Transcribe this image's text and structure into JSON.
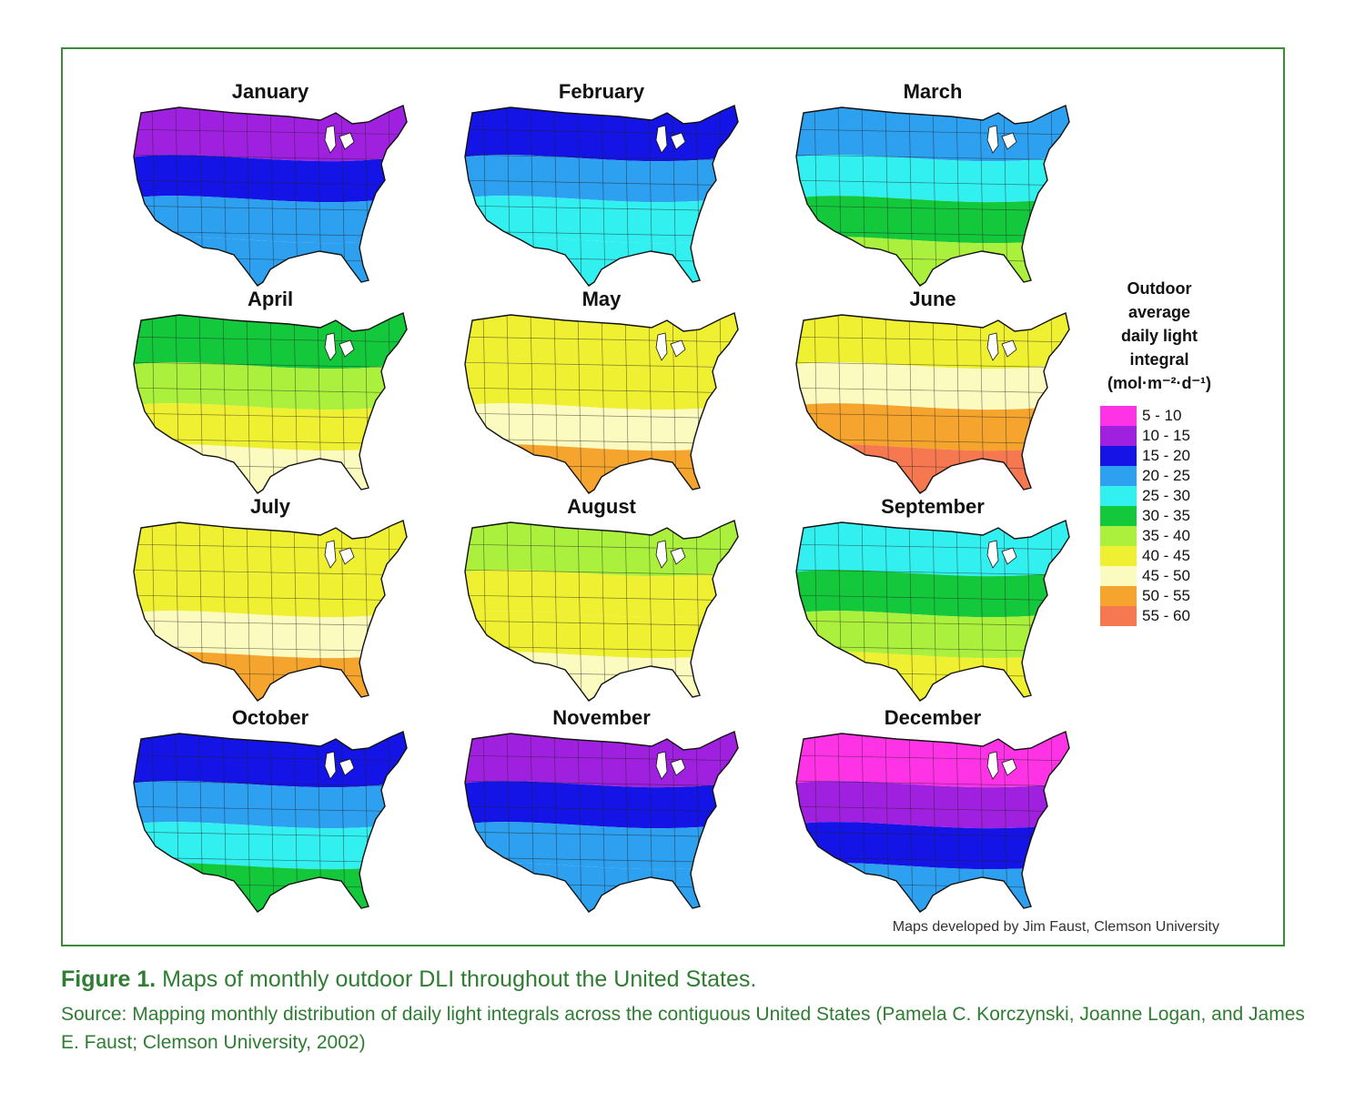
{
  "figure": {
    "credit": "Maps developed by Jim Faust, Clemson University",
    "caption_label": "Figure 1.",
    "caption_text": "Maps of monthly outdoor DLI throughout the United States.",
    "source": "Source: Mapping monthly distribution of daily light integrals across the contiguous United States (Pamela C. Korczynski, Joanne Logan, and James E. Faust; Clemson University, 2002)"
  },
  "legend": {
    "title_lines": [
      "Outdoor",
      "average",
      "daily light",
      "integral",
      "(mol·m⁻²·d⁻¹)"
    ],
    "classes": [
      {
        "label": "5 - 10",
        "color": "#ff33e6"
      },
      {
        "label": "10 - 15",
        "color": "#a020e0"
      },
      {
        "label": "15 - 20",
        "color": "#1414e6"
      },
      {
        "label": "20 - 25",
        "color": "#2ea0f0"
      },
      {
        "label": "25 - 30",
        "color": "#33f0f0"
      },
      {
        "label": "30 - 35",
        "color": "#14c83c"
      },
      {
        "label": "35 - 40",
        "color": "#aaf03c"
      },
      {
        "label": "40 - 45",
        "color": "#f0f032"
      },
      {
        "label": "45 - 50",
        "color": "#fbfbc0"
      },
      {
        "label": "50 - 55",
        "color": "#f5a52d"
      },
      {
        "label": "55 - 60",
        "color": "#f57850"
      }
    ]
  },
  "maps": [
    {
      "month": "January",
      "bands": [
        1,
        2,
        3,
        3
      ]
    },
    {
      "month": "February",
      "bands": [
        2,
        3,
        4,
        4
      ]
    },
    {
      "month": "March",
      "bands": [
        3,
        4,
        5,
        6
      ]
    },
    {
      "month": "April",
      "bands": [
        5,
        6,
        7,
        8
      ]
    },
    {
      "month": "May",
      "bands": [
        7,
        7,
        8,
        9
      ]
    },
    {
      "month": "June",
      "bands": [
        7,
        8,
        9,
        10
      ]
    },
    {
      "month": "July",
      "bands": [
        7,
        7,
        8,
        9
      ]
    },
    {
      "month": "August",
      "bands": [
        6,
        7,
        7,
        8
      ]
    },
    {
      "month": "September",
      "bands": [
        4,
        5,
        6,
        7
      ]
    },
    {
      "month": "October",
      "bands": [
        2,
        3,
        4,
        5
      ]
    },
    {
      "month": "November",
      "bands": [
        1,
        2,
        3,
        3
      ]
    },
    {
      "month": "December",
      "bands": [
        0,
        1,
        2,
        3
      ]
    }
  ]
}
